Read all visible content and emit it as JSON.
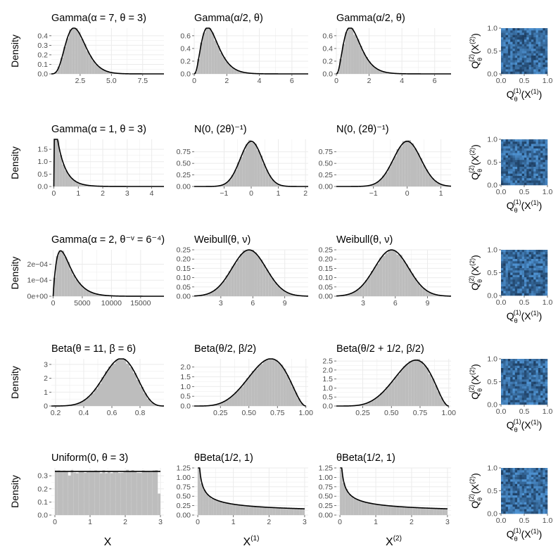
{
  "colors": {
    "bar": "#bdbdbd",
    "curve": "#000000",
    "grid": "#ebebeb",
    "tick": "#4d4d4d",
    "heat_dark": "#1e3f63",
    "heat_light": "#4f94d4"
  },
  "y_label": "Density",
  "heat_labels": {
    "y_main": "Q",
    "y_sub": "θ",
    "y_sup": "(2)",
    "y_arg": "(X",
    "y_arg_sup": "(2)",
    "y_arg_close": ")",
    "x_main": "Q",
    "x_sub": "θ",
    "x_sup": "(1)",
    "x_arg": "(X",
    "x_arg_sup": "(1)",
    "x_arg_close": ")"
  },
  "col_labels": [
    {
      "main": "X",
      "sup": ""
    },
    {
      "main": "X",
      "sup": "(1)"
    },
    {
      "main": "X",
      "sup": "(2)"
    }
  ],
  "chart_data": [
    {
      "type": "bar",
      "row": 0,
      "col": 0,
      "title": "Gamma(α = 7, θ = 3)",
      "dist": "gamma",
      "params": [
        7,
        3
      ],
      "xlim": [
        0.2,
        9.2
      ],
      "ylim": [
        0,
        0.48
      ],
      "xticks": [
        2.5,
        5,
        7.5
      ],
      "xtick_labels": [
        "2.5",
        "5.0",
        "7.5"
      ],
      "yticks": [
        0,
        0.1,
        0.2,
        0.3,
        0.4
      ],
      "ytick_labels": [
        "0.0",
        "0.1",
        "0.2",
        "0.3",
        "0.4"
      ]
    },
    {
      "type": "bar",
      "row": 0,
      "col": 1,
      "title": "Gamma(α/2, θ)",
      "dist": "gamma",
      "params": [
        3.5,
        3
      ],
      "xlim": [
        0,
        7
      ],
      "ylim": [
        0,
        0.72
      ],
      "xticks": [
        0,
        2,
        4,
        6
      ],
      "xtick_labels": [
        "0",
        "2",
        "4",
        "6"
      ],
      "yticks": [
        0,
        0.2,
        0.4,
        0.6
      ],
      "ytick_labels": [
        "0.0",
        "0.2",
        "0.4",
        "0.6"
      ]
    },
    {
      "type": "bar",
      "row": 0,
      "col": 2,
      "title": "Gamma(α/2, θ)",
      "dist": "gamma",
      "params": [
        3.5,
        3
      ],
      "xlim": [
        0,
        7
      ],
      "ylim": [
        0,
        0.72
      ],
      "xticks": [
        0,
        2,
        4,
        6
      ],
      "xtick_labels": [
        "0",
        "2",
        "4",
        "6"
      ],
      "yticks": [
        0,
        0.2,
        0.4,
        0.6
      ],
      "ytick_labels": [
        "0.0",
        "0.2",
        "0.4",
        "0.6"
      ]
    },
    {
      "type": "bar",
      "row": 1,
      "col": 0,
      "title": "Gamma(α = 1, θ = 3)",
      "dist": "gamma",
      "params": [
        1,
        3
      ],
      "xlim": [
        -0.1,
        4.5
      ],
      "ylim": [
        0,
        1.9
      ],
      "xticks": [
        0,
        1,
        2,
        3,
        4
      ],
      "xtick_labels": [
        "0",
        "1",
        "2",
        "3",
        "4"
      ],
      "yticks": [
        0,
        0.5,
        1,
        1.5
      ],
      "ytick_labels": [
        "0.0",
        "0.5",
        "1.0",
        "1.5"
      ]
    },
    {
      "type": "bar",
      "row": 1,
      "col": 1,
      "title": "N(0, (2θ)⁻¹)",
      "dist": "normal",
      "params": [
        0,
        0.408
      ],
      "xlim": [
        -2.1,
        2.1
      ],
      "ylim": [
        0,
        1.02
      ],
      "xticks": [
        -1,
        0,
        1,
        2
      ],
      "xtick_labels": [
        "−1",
        "0",
        "1",
        "2"
      ],
      "yticks": [
        0,
        0.25,
        0.5,
        0.75
      ],
      "ytick_labels": [
        "0.00",
        "0.25",
        "0.50",
        "0.75"
      ]
    },
    {
      "type": "bar",
      "row": 1,
      "col": 2,
      "title": "N(0, (2θ)⁻¹)",
      "dist": "normal",
      "params": [
        0,
        0.408
      ],
      "xlim": [
        -2.1,
        1.3
      ],
      "ylim": [
        0,
        1.02
      ],
      "xticks": [
        -1,
        0,
        1
      ],
      "xtick_labels": [
        "−1",
        "0",
        "1"
      ],
      "yticks": [
        0,
        0.25,
        0.5,
        0.75
      ],
      "ytick_labels": [
        "0.00",
        "0.25",
        "0.50",
        "0.75"
      ]
    },
    {
      "type": "bar",
      "row": 2,
      "col": 0,
      "title": "Gamma(α = 2, θ⁻ᵛ = 6⁻⁴)",
      "dist": "gamma",
      "params": [
        2,
        0.000771
      ],
      "xlim": [
        -300,
        19000
      ],
      "ylim": [
        0,
        0.00029
      ],
      "xticks": [
        0,
        5000,
        10000,
        15000
      ],
      "xtick_labels": [
        "0",
        "5000",
        "10000",
        "15000"
      ],
      "yticks": [
        0,
        0.0001,
        0.0002
      ],
      "ytick_labels": [
        "0e+00",
        "1e−04",
        "2e−04"
      ]
    },
    {
      "type": "bar",
      "row": 2,
      "col": 1,
      "title": "Weibull(θ, ν)",
      "dist": "normal",
      "params": [
        5.65,
        1.6
      ],
      "xlim": [
        0.5,
        11.2
      ],
      "ylim": [
        0,
        0.25
      ],
      "xticks": [
        3,
        6,
        9
      ],
      "xtick_labels": [
        "3",
        "6",
        "9"
      ],
      "yticks": [
        0,
        0.05,
        0.1,
        0.15,
        0.2,
        0.25
      ],
      "ytick_labels": [
        "0.00",
        "0.05",
        "0.10",
        "0.15",
        "0.20",
        "0.25"
      ]
    },
    {
      "type": "bar",
      "row": 2,
      "col": 2,
      "title": "Weibull(θ, ν)",
      "dist": "normal",
      "params": [
        5.65,
        1.6
      ],
      "xlim": [
        0.5,
        11.2
      ],
      "ylim": [
        0,
        0.25
      ],
      "xticks": [
        3,
        6,
        9
      ],
      "xtick_labels": [
        "3",
        "6",
        "9"
      ],
      "yticks": [
        0,
        0.05,
        0.1,
        0.15,
        0.2,
        0.25
      ],
      "ytick_labels": [
        "0.00",
        "0.05",
        "0.10",
        "0.15",
        "0.20",
        "0.25"
      ]
    },
    {
      "type": "bar",
      "row": 3,
      "col": 0,
      "title": "Beta(θ = 11, β = 6)",
      "dist": "beta",
      "params": [
        11,
        6
      ],
      "xlim": [
        0.17,
        0.97
      ],
      "ylim": [
        0,
        3.4
      ],
      "xticks": [
        0.2,
        0.4,
        0.6,
        0.8
      ],
      "xtick_labels": [
        "0.2",
        "0.4",
        "0.6",
        "0.8"
      ],
      "yticks": [
        0,
        1,
        2,
        3
      ],
      "ytick_labels": [
        "0",
        "1",
        "2",
        "3"
      ]
    },
    {
      "type": "bar",
      "row": 3,
      "col": 1,
      "title": "Beta(θ/2, β/2)",
      "dist": "beta",
      "params": [
        5.5,
        3
      ],
      "xlim": [
        0.02,
        1.02
      ],
      "ylim": [
        0,
        2.42
      ],
      "xticks": [
        0.25,
        0.5,
        0.75,
        1
      ],
      "xtick_labels": [
        "0.25",
        "0.50",
        "0.75",
        "1.00"
      ],
      "yticks": [
        0,
        0.5,
        1,
        1.5,
        2
      ],
      "ytick_labels": [
        "0.0",
        "0.5",
        "1.0",
        "1.5",
        "2.0"
      ]
    },
    {
      "type": "bar",
      "row": 3,
      "col": 2,
      "title": "Beta(θ/2 + 1/2, β/2)",
      "dist": "beta",
      "params": [
        6,
        3
      ],
      "xlim": [
        0.02,
        1.02
      ],
      "ylim": [
        0,
        2.62
      ],
      "xticks": [
        0.25,
        0.5,
        0.75,
        1
      ],
      "xtick_labels": [
        "0.25",
        "0.50",
        "0.75",
        "1.00"
      ],
      "yticks": [
        0,
        0.5,
        1,
        1.5,
        2,
        2.5
      ],
      "ytick_labels": [
        "0.0",
        "0.5",
        "1.0",
        "1.5",
        "2.0",
        "2.5"
      ]
    },
    {
      "type": "bar",
      "row": 4,
      "col": 0,
      "title": "Uniform(0, θ = 3)",
      "dist": "uniform",
      "params": [
        0,
        3
      ],
      "xlim": [
        -0.1,
        3.1
      ],
      "ylim": [
        0,
        0.36
      ],
      "xticks": [
        0,
        1,
        2,
        3
      ],
      "xtick_labels": [
        "0",
        "1",
        "2",
        "3"
      ],
      "yticks": [
        0,
        0.1,
        0.2,
        0.3
      ],
      "ytick_labels": [
        "0.0",
        "0.1",
        "0.2",
        "0.3"
      ]
    },
    {
      "type": "bar",
      "row": 4,
      "col": 1,
      "title": "θBeta(1/2, 1)",
      "dist": "sqrt",
      "params": [
        3
      ],
      "xlim": [
        -0.1,
        3.1
      ],
      "ylim": [
        0,
        1.25
      ],
      "xticks": [
        0,
        1,
        2,
        3
      ],
      "xtick_labels": [
        "0",
        "1",
        "2",
        "3"
      ],
      "yticks": [
        0,
        0.25,
        0.5,
        0.75,
        1,
        1.25
      ],
      "ytick_labels": [
        "0.00",
        "0.25",
        "0.50",
        "0.75",
        "1.00",
        "1.25"
      ]
    },
    {
      "type": "bar",
      "row": 4,
      "col": 2,
      "title": "θBeta(1/2, 1)",
      "dist": "sqrt",
      "params": [
        3
      ],
      "xlim": [
        -0.1,
        3.1
      ],
      "ylim": [
        0,
        1.25
      ],
      "xticks": [
        0,
        1,
        2,
        3
      ],
      "xtick_labels": [
        "0",
        "1",
        "2",
        "3"
      ],
      "yticks": [
        0,
        0.25,
        0.5,
        0.75,
        1,
        1.25
      ],
      "ytick_labels": [
        "0.00",
        "0.25",
        "0.50",
        "0.75",
        "1.00",
        "1.25"
      ]
    },
    {
      "type": "heatmap",
      "row": 0,
      "col": 3,
      "xlim": [
        0,
        1
      ],
      "ylim": [
        0,
        1
      ],
      "xticks": [
        0,
        0.5,
        1
      ],
      "xtick_labels": [
        "0.0",
        "0.5",
        "1.0"
      ],
      "yticks": [
        0,
        0.5,
        1
      ],
      "ytick_labels": [
        "0.0",
        "0.5",
        "1.0"
      ],
      "grid_cells": 20
    },
    {
      "type": "heatmap",
      "row": 1,
      "col": 3,
      "xlim": [
        0,
        1
      ],
      "ylim": [
        0,
        1
      ],
      "xticks": [
        0,
        0.5,
        1
      ],
      "xtick_labels": [
        "0.0",
        "0.5",
        "1.0"
      ],
      "yticks": [
        0,
        0.5,
        1
      ],
      "ytick_labels": [
        "0.0",
        "0.5",
        "1.0"
      ],
      "grid_cells": 20
    },
    {
      "type": "heatmap",
      "row": 2,
      "col": 3,
      "xlim": [
        0,
        1
      ],
      "ylim": [
        0,
        1
      ],
      "xticks": [
        0,
        0.5,
        1
      ],
      "xtick_labels": [
        "0.0",
        "0.5",
        "1.0"
      ],
      "yticks": [
        0,
        0.5,
        1
      ],
      "ytick_labels": [
        "0.0",
        "0.5",
        "1.0"
      ],
      "grid_cells": 20
    },
    {
      "type": "heatmap",
      "row": 3,
      "col": 3,
      "xlim": [
        0,
        1
      ],
      "ylim": [
        0,
        1
      ],
      "xticks": [
        0,
        0.5,
        1
      ],
      "xtick_labels": [
        "0.0",
        "0.5",
        "1.0"
      ],
      "yticks": [
        0,
        0.5,
        1
      ],
      "ytick_labels": [
        "0.0",
        "0.5",
        "1.0"
      ],
      "grid_cells": 20
    },
    {
      "type": "heatmap",
      "row": 4,
      "col": 3,
      "xlim": [
        0,
        1
      ],
      "ylim": [
        0,
        1
      ],
      "xticks": [
        0,
        0.5,
        1
      ],
      "xtick_labels": [
        "0.0",
        "0.5",
        "1.0"
      ],
      "yticks": [
        0,
        0.5,
        1
      ],
      "ytick_labels": [
        "0.0",
        "0.5",
        "1.0"
      ],
      "grid_cells": 20
    }
  ]
}
